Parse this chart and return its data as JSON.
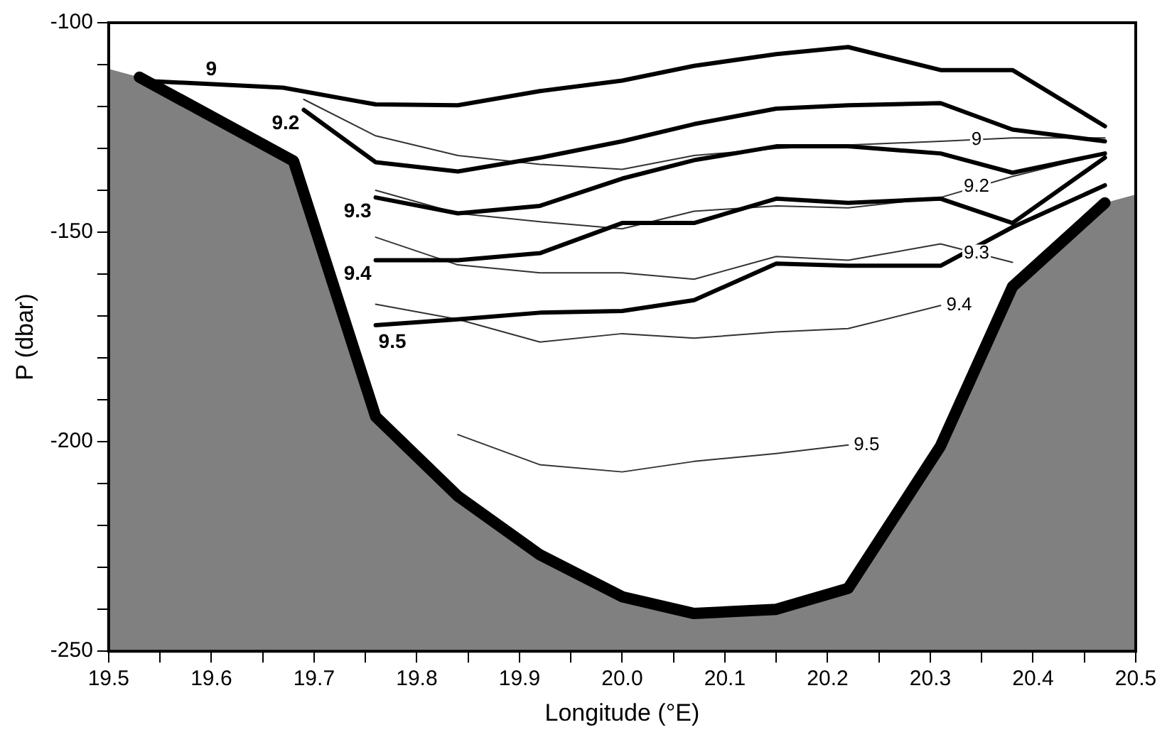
{
  "chart_data": {
    "type": "line",
    "xlabel": "Longitude (°E)",
    "ylabel": "P (dbar)",
    "xlim": [
      19.5,
      20.5
    ],
    "ylim": [
      -250,
      -100
    ],
    "xticks": [
      19.5,
      {
        "value": 19.55,
        "label": null
      },
      19.6,
      {
        "value": 19.65,
        "label": null
      },
      19.7,
      {
        "value": 19.75,
        "label": null
      },
      19.8,
      {
        "value": 19.85,
        "label": null
      },
      19.9,
      {
        "value": 19.95,
        "label": null
      },
      {
        "value": 20,
        "label": "20.0"
      },
      {
        "value": 20.05,
        "label": null
      },
      20.1,
      {
        "value": 20.15,
        "label": null
      },
      20.2,
      {
        "value": 20.25,
        "label": null
      },
      20.3,
      {
        "value": 20.35,
        "label": null
      },
      20.4,
      {
        "value": 20.45,
        "label": null
      },
      20.5
    ],
    "yticks": [
      -250,
      {
        "value": -240,
        "label": null
      },
      {
        "value": -230,
        "label": null
      },
      {
        "value": -220,
        "label": null
      },
      {
        "value": -210,
        "label": null
      },
      -200,
      {
        "value": -190,
        "label": null
      },
      {
        "value": -180,
        "label": null
      },
      {
        "value": -170,
        "label": null
      },
      {
        "value": -160,
        "label": null
      },
      -150,
      {
        "value": -140,
        "label": null
      },
      {
        "value": -130,
        "label": null
      },
      {
        "value": -120,
        "label": null
      },
      {
        "value": -110,
        "label": null
      },
      -100
    ],
    "grid": false,
    "legend": false,
    "marker": "none",
    "series": [
      {
        "type": "area",
        "color": "#808080",
        "x": [
          19.5,
          19.5,
          19.53,
          19.68,
          19.76,
          19.84,
          19.92,
          20.0,
          20.07,
          20.15,
          20.22,
          20.31,
          20.38,
          20.47,
          20.5,
          20.5
        ],
        "values": [
          -250,
          -111,
          -113,
          -133,
          -194,
          -213,
          -227,
          -237,
          -241,
          -240,
          -235,
          -201,
          -163,
          -143,
          -141,
          -250
        ]
      },
      {
        "name": "9",
        "color": "#000000",
        "x": [
          19.53,
          19.67,
          19.76,
          19.84,
          19.92,
          20.0,
          20.07,
          20.15,
          20.22,
          20.31,
          20.38,
          20.47
        ],
        "values": [
          -113.8,
          -115.5,
          -119.5,
          -119.7,
          -116.3,
          -113.8,
          -110.3,
          -107.5,
          -105.8,
          -111.3,
          -111.3,
          -124.7
        ]
      },
      {
        "name": "9.2",
        "color": "#000000",
        "x": [
          19.69,
          19.76,
          19.84,
          19.92,
          20.0,
          20.07,
          20.15,
          20.22,
          20.31,
          20.38,
          20.47
        ],
        "values": [
          -120.8,
          -133.3,
          -135.5,
          -132.2,
          -128.3,
          -124.2,
          -120.5,
          -119.7,
          -119.2,
          -125.5,
          -128.3
        ]
      },
      {
        "name": "9.3",
        "color": "#000000",
        "x": [
          19.76,
          19.84,
          19.92,
          20.0,
          20.07,
          20.15,
          20.22,
          20.31,
          20.38,
          20.47
        ],
        "values": [
          -141.7,
          -145.5,
          -143.7,
          -137.2,
          -132.8,
          -129.5,
          -129.5,
          -131.2,
          -135.8,
          -131.2
        ]
      },
      {
        "name": "9.4",
        "color": "#000000",
        "x": [
          19.76,
          19.84,
          19.92,
          20.0,
          20.07,
          20.15,
          20.22,
          20.31,
          20.38,
          20.47
        ],
        "values": [
          -156.7,
          -156.7,
          -155,
          -147.8,
          -147.8,
          -142,
          -143,
          -142,
          -147.8,
          -132.2
        ]
      },
      {
        "name": "9.5",
        "color": "#000000",
        "x": [
          19.76,
          19.84,
          19.92,
          20.0,
          20.07,
          20.15,
          20.22,
          20.31,
          20.38,
          20.47
        ],
        "values": [
          -172.2,
          -170.8,
          -169.2,
          -168.8,
          -166.2,
          -157.5,
          -158,
          -158,
          -148.8,
          -138.8
        ]
      },
      {
        "color": "#333333",
        "x": [
          19.69,
          19.76,
          19.84,
          19.92,
          20.0,
          20.07,
          20.15,
          20.22,
          20.31,
          20.38,
          20.47
        ],
        "values": [
          -118.3,
          -127,
          -131.7,
          -133.8,
          -135,
          -131.7,
          -130,
          -129.2,
          -128.3,
          -127.5,
          -127.5
        ]
      },
      {
        "color": "#333333",
        "x": [
          19.76,
          19.84,
          19.92,
          20.0,
          20.07,
          20.15,
          20.22,
          20.31,
          20.38,
          20.47
        ],
        "values": [
          -140,
          -145.5,
          -147.5,
          -149.2,
          -145,
          -143.7,
          -144.2,
          -141.7,
          -136.7,
          -131.2
        ]
      },
      {
        "color": "#333333",
        "x": [
          19.76,
          19.84,
          19.92,
          20.0,
          20.07,
          20.15,
          20.22,
          20.31,
          20.38
        ],
        "values": [
          -151.2,
          -157.8,
          -159.7,
          -159.7,
          -161.2,
          -155.8,
          -156.7,
          -152.8,
          -157.2
        ]
      },
      {
        "color": "#333333",
        "x": [
          19.76,
          19.84,
          19.92,
          20.0,
          20.07,
          20.15,
          20.22,
          20.31
        ],
        "values": [
          -167.2,
          -170.8,
          -176.2,
          -174.2,
          -175.3,
          -173.8,
          -173,
          -167.5
        ]
      },
      {
        "color": "#333333",
        "x": [
          19.84,
          19.92,
          20.0,
          20.07,
          20.15,
          20.22
        ],
        "values": [
          -198.3,
          -205.5,
          -207.2,
          -204.7,
          -202.8,
          -200.8
        ]
      }
    ],
    "annotations": [
      {
        "text": "9",
        "x": 20.345,
        "y": -127.9
      },
      {
        "text": "9.2",
        "x": 20.345,
        "y": -139.2
      },
      {
        "text": "9.3",
        "x": 20.345,
        "y": -155
      },
      {
        "text": "9.4",
        "x": 20.31,
        "y": -167.5
      },
      {
        "text": "9.5",
        "x": 20.22,
        "y": -200.8
      }
    ]
  }
}
